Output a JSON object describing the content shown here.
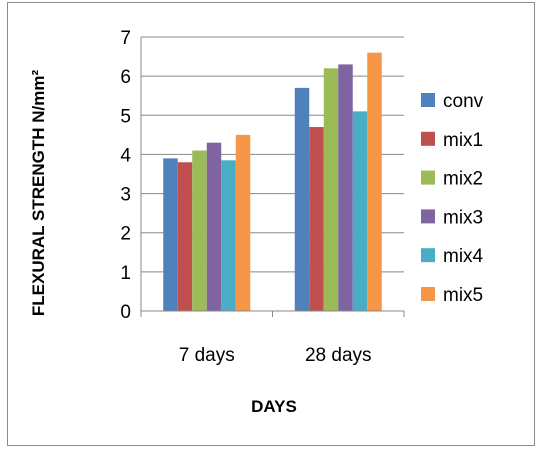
{
  "chart_data": {
    "type": "bar",
    "title": "",
    "xlabel": "DAYS",
    "ylabel": "FLEXURAL STRENGTH N/mm²",
    "ylim": [
      0,
      7
    ],
    "yticks": [
      "0",
      "1",
      "2",
      "3",
      "4",
      "5",
      "6",
      "7"
    ],
    "grid": true,
    "legend_position": "right",
    "categories": [
      "7 days",
      "28 days"
    ],
    "series": [
      {
        "name": "conv",
        "color": "#4F81BD",
        "values": [
          3.9,
          5.7
        ]
      },
      {
        "name": "mix1",
        "color": "#C0504D",
        "values": [
          3.8,
          4.7
        ]
      },
      {
        "name": "mix2",
        "color": "#9BBB59",
        "values": [
          4.1,
          6.2
        ]
      },
      {
        "name": "mix3",
        "color": "#8064A2",
        "values": [
          4.3,
          6.3
        ]
      },
      {
        "name": "mix4",
        "color": "#4BACC6",
        "values": [
          3.85,
          5.1
        ]
      },
      {
        "name": "mix5",
        "color": "#F79646",
        "values": [
          4.5,
          6.6
        ]
      }
    ]
  }
}
